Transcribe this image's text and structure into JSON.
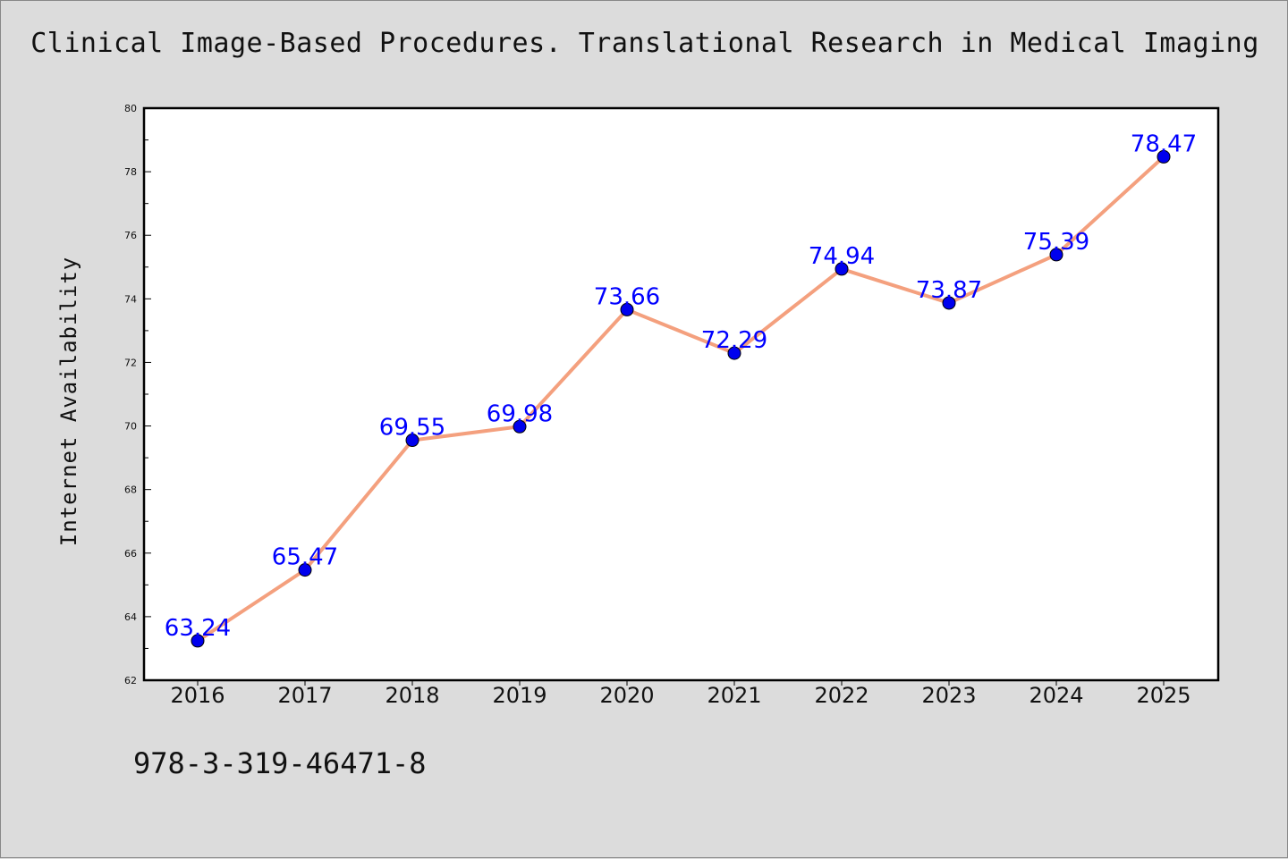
{
  "chart_data": {
    "type": "line",
    "title": "Clinical Image-Based Procedures. Translational Research in Medical Imaging",
    "xlabel": "",
    "ylabel": "Internet Availability",
    "categories": [
      "2016",
      "2017",
      "2018",
      "2019",
      "2020",
      "2021",
      "2022",
      "2023",
      "2024",
      "2025"
    ],
    "values": [
      63.24,
      65.47,
      69.55,
      69.98,
      73.66,
      72.29,
      74.94,
      73.87,
      75.39,
      78.47
    ],
    "data_labels": [
      "63.24",
      "65.47",
      "69.55",
      "69.98",
      "73.66",
      "72.29",
      "74.94",
      "73.87",
      "75.39",
      "78.47"
    ],
    "ylim": [
      62,
      80
    ],
    "yticks": [
      62,
      64,
      66,
      68,
      70,
      72,
      74,
      76,
      78,
      80
    ],
    "grid": false,
    "legend": "none",
    "colors": {
      "line": "#f4a07e",
      "marker": "#0000ee",
      "label": "#0000ff",
      "frame": "#000000",
      "background": "#dcdcdc"
    }
  },
  "footer_text": "978-3-319-46471-8"
}
